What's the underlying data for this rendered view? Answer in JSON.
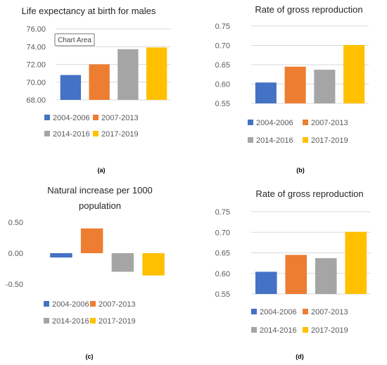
{
  "colors": {
    "blue": "#4472C4",
    "orange": "#ED7D31",
    "gray": "#A5A5A5",
    "yellow": "#FFC000",
    "grid": "#D9D9D9",
    "tick_text": "#595959",
    "title_text": "#262626"
  },
  "tooltip": {
    "text": "Chart Area"
  },
  "chart_data": [
    {
      "panel": "(a)",
      "type": "bar",
      "title": [
        "Life expectancy at birth for males"
      ],
      "categories": [
        "2004-2006",
        "2007-2013",
        "2014-2016",
        "2017-2019"
      ],
      "values": [
        70.8,
        72.0,
        73.7,
        73.9
      ],
      "ylim": [
        68.0,
        76.0
      ],
      "yticks": [
        "68.00",
        "70.00",
        "72.00",
        "74.00",
        "76.00"
      ],
      "grid": true,
      "legend": "bottom"
    },
    {
      "panel": "(b)",
      "type": "bar",
      "title": [
        "Rate of gross reproduction"
      ],
      "categories": [
        "2004-2006",
        "2007-2013",
        "2014-2016",
        "2017-2019"
      ],
      "values": [
        0.604,
        0.645,
        0.637,
        0.701
      ],
      "ylim": [
        0.55,
        0.75
      ],
      "yticks": [
        "0.55",
        "0.60",
        "0.65",
        "0.70",
        "0.75"
      ],
      "grid": true,
      "legend": "bottom"
    },
    {
      "panel": "(c)",
      "type": "bar",
      "title": [
        "Natural increase per 1000",
        "population"
      ],
      "categories": [
        "2004-2006",
        "2007-2013",
        "2014-2016",
        "2017-2019"
      ],
      "values": [
        -0.07,
        0.4,
        -0.3,
        -0.36
      ],
      "ylim": [
        -0.5,
        0.5
      ],
      "yticks": [
        "-0.50",
        "0.00",
        "0.50"
      ],
      "grid": false,
      "legend": "bottom"
    },
    {
      "panel": "(d)",
      "type": "bar",
      "title": [
        "Rate of gross reproduction"
      ],
      "categories": [
        "2004-2006",
        "2007-2013",
        "2014-2016",
        "2017-2019"
      ],
      "values": [
        0.604,
        0.645,
        0.637,
        0.701
      ],
      "ylim": [
        0.55,
        0.75
      ],
      "yticks": [
        "0.55",
        "0.60",
        "0.65",
        "0.70",
        "0.75"
      ],
      "grid": true,
      "legend": "bottom"
    }
  ]
}
